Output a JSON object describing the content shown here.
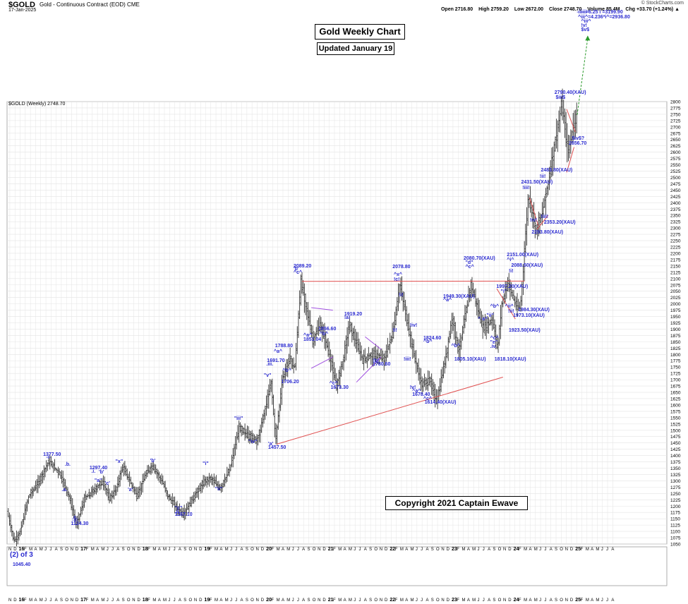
{
  "header": {
    "symbol": "$GOLD",
    "description": "Gold - Continuous Contract (EOD)  CME",
    "date": "17-Jan-2025",
    "site": "© StockCharts.com",
    "open": "Open 2716.80",
    "high": "High 2759.20",
    "low": "Low 2672.00",
    "close": "Close 2748.70",
    "volume": "Volume 85.4M",
    "change": "Chg +33.70 (+1.24%) ▲"
  },
  "title": "Gold Weekly Chart",
  "updated": "Updated January 19",
  "copyright": "Copyright 2021 Captain Ewave",
  "series_label": "$GOLD (Weekly) 2748.70",
  "wave_label": "(2) of 3",
  "wave_value": "1045.40",
  "colors": {
    "bars": "#333333",
    "labels": "#2b2bd0",
    "trendlines": "#e05050",
    "channel": "#a050e0",
    "projection": "#2a9a2a",
    "grid": "#e4e4e4"
  },
  "chart_data": {
    "type": "ohlc",
    "title": "Gold Weekly Chart",
    "y_axis_side": "right",
    "ylim": [
      1050,
      2800
    ],
    "yticks": [
      1050,
      1075,
      1100,
      1125,
      1150,
      1175,
      1200,
      1225,
      1250,
      1275,
      1300,
      1325,
      1350,
      1375,
      1400,
      1425,
      1450,
      1475,
      1500,
      1525,
      1550,
      1575,
      1600,
      1625,
      1650,
      1675,
      1700,
      1725,
      1750,
      1775,
      1800,
      1825,
      1850,
      1875,
      1900,
      1925,
      1950,
      1975,
      2000,
      2025,
      2050,
      2075,
      2100,
      2125,
      2150,
      2175,
      2200,
      2225,
      2250,
      2275,
      2300,
      2325,
      2350,
      2375,
      2400,
      2425,
      2450,
      2475,
      2500,
      2525,
      2550,
      2575,
      2600,
      2625,
      2650,
      2675,
      2700,
      2725,
      2750,
      2775,
      2800
    ],
    "xlim": [
      2015.83,
      2026.5
    ],
    "xticks": [
      "N",
      "D",
      "16",
      "F",
      "M",
      "A",
      "M",
      "J",
      "J",
      "A",
      "S",
      "O",
      "N",
      "D",
      "17",
      "F",
      "M",
      "A",
      "M",
      "J",
      "J",
      "A",
      "S",
      "O",
      "N",
      "D",
      "18",
      "F",
      "M",
      "A",
      "M",
      "J",
      "J",
      "A",
      "S",
      "O",
      "N",
      "D",
      "19",
      "F",
      "M",
      "A",
      "M",
      "J",
      "J",
      "A",
      "S",
      "O",
      "N",
      "D",
      "20",
      "F",
      "M",
      "A",
      "M",
      "J",
      "J",
      "A",
      "S",
      "O",
      "N",
      "D",
      "21",
      "F",
      "M",
      "A",
      "M",
      "J",
      "J",
      "A",
      "S",
      "O",
      "N",
      "D",
      "22",
      "F",
      "M",
      "A",
      "M",
      "J",
      "J",
      "A",
      "S",
      "O",
      "N",
      "D",
      "23",
      "F",
      "M",
      "A",
      "M",
      "J",
      "J",
      "A",
      "S",
      "O",
      "N",
      "D",
      "24",
      "F",
      "M",
      "A",
      "M",
      "J",
      "J",
      "A",
      "S",
      "O",
      "N",
      "D",
      "25",
      "F",
      "M",
      "A",
      "M",
      "J",
      "J",
      "A"
    ],
    "price_path": [
      [
        2015.85,
        1180
      ],
      [
        2015.96,
        1062
      ],
      [
        2016.05,
        1090
      ],
      [
        2016.2,
        1240
      ],
      [
        2016.35,
        1290
      ],
      [
        2016.52,
        1377.5
      ],
      [
        2016.7,
        1330
      ],
      [
        2016.85,
        1240
      ],
      [
        2016.97,
        1124.3
      ],
      [
        2017.1,
        1230
      ],
      [
        2017.2,
        1250
      ],
      [
        2017.4,
        1297.4
      ],
      [
        2017.5,
        1230
      ],
      [
        2017.6,
        1260
      ],
      [
        2017.72,
        1357
      ],
      [
        2017.95,
        1240
      ],
      [
        2018.1,
        1330
      ],
      [
        2018.2,
        1360
      ],
      [
        2018.35,
        1300
      ],
      [
        2018.45,
        1240
      ],
      [
        2018.6,
        1190
      ],
      [
        2018.7,
        1167.1
      ],
      [
        2018.85,
        1230
      ],
      [
        2019.05,
        1300
      ],
      [
        2019.15,
        1310
      ],
      [
        2019.3,
        1270
      ],
      [
        2019.45,
        1345
      ],
      [
        2019.6,
        1510
      ],
      [
        2019.75,
        1480
      ],
      [
        2019.9,
        1460
      ],
      [
        2020.0,
        1560
      ],
      [
        2020.12,
        1691.7
      ],
      [
        2020.19,
        1457.5
      ],
      [
        2020.3,
        1700
      ],
      [
        2020.42,
        1788.8
      ],
      [
        2020.5,
        1740
      ],
      [
        2020.6,
        2089.2
      ],
      [
        2020.8,
        1851.04
      ],
      [
        2020.9,
        1920
      ],
      [
        2021.0,
        1856.6
      ],
      [
        2021.18,
        1673.3
      ],
      [
        2021.3,
        1800
      ],
      [
        2021.38,
        1919.2
      ],
      [
        2021.6,
        1780.6
      ],
      [
        2021.8,
        1800
      ],
      [
        2021.95,
        1780
      ],
      [
        2022.1,
        1900
      ],
      [
        2022.2,
        2078.8
      ],
      [
        2022.4,
        1830
      ],
      [
        2022.55,
        1678.4
      ],
      [
        2022.68,
        1700
      ],
      [
        2022.8,
        1614.4
      ],
      [
        2022.95,
        1800
      ],
      [
        2023.05,
        1950
      ],
      [
        2023.15,
        1805.1
      ],
      [
        2023.35,
        2080.7
      ],
      [
        2023.55,
        1900
      ],
      [
        2023.7,
        1940
      ],
      [
        2023.78,
        1818.1
      ],
      [
        2023.85,
        2000
      ],
      [
        2023.95,
        2088.5
      ],
      [
        2024.08,
        1990
      ],
      [
        2024.15,
        1984.3
      ],
      [
        2024.28,
        2431.5
      ],
      [
        2024.4,
        2293.8
      ],
      [
        2024.5,
        2353.2
      ],
      [
        2024.6,
        2483.8
      ],
      [
        2024.82,
        2790.4
      ],
      [
        2024.92,
        2600
      ],
      [
        2025.05,
        2748.7
      ]
    ],
    "annotations": [
      {
        "text": "1377.50",
        "x": 2016.55,
        "y": 1400
      },
      {
        "text": "-i-",
        "x": 2016.6,
        "y": 1387
      },
      {
        "text": ".b.",
        "x": 2016.9,
        "y": 1360
      },
      {
        "text": ".a.",
        "x": 2016.85,
        "y": 1260
      },
      {
        "text": ".c.",
        "x": 2017.02,
        "y": 1150
      },
      {
        "text": "-ii-",
        "x": 2017.02,
        "y": 1138
      },
      {
        "text": "1124.30",
        "x": 2017.0,
        "y": 1125
      },
      {
        "text": "1297.40",
        "x": 2017.3,
        "y": 1345
      },
      {
        "text": ".i.",
        "x": 2017.33,
        "y": 1332
      },
      {
        "text": "'b'",
        "x": 2017.45,
        "y": 1330
      },
      {
        "text": "\"a\"",
        "x": 2017.38,
        "y": 1296
      },
      {
        "text": "'c'",
        "x": 2017.55,
        "y": 1285
      },
      {
        "text": "\"x\"",
        "x": 2017.72,
        "y": 1372
      },
      {
        "text": "'a'",
        "x": 2017.92,
        "y": 1260
      },
      {
        "text": "'b'",
        "x": 2018.28,
        "y": 1375
      },
      {
        "text": "\"c\"",
        "x": 2018.68,
        "y": 1187
      },
      {
        "text": ".ii.",
        "x": 2018.68,
        "y": 1174
      },
      {
        "text": "1167.10",
        "x": 2018.68,
        "y": 1161
      },
      {
        "text": "\"i\"",
        "x": 2019.13,
        "y": 1362
      },
      {
        "text": "\"ii\"",
        "x": 2019.33,
        "y": 1262
      },
      {
        "text": "\"iii\"",
        "x": 2019.64,
        "y": 1540
      },
      {
        "text": "\"iv\"",
        "x": 2019.87,
        "y": 1450
      },
      {
        "text": "\"v\"",
        "x": 2020.12,
        "y": 1712
      },
      {
        "text": ".iii.",
        "x": 2020.16,
        "y": 1757
      },
      {
        "text": "1691.70",
        "x": 2020.17,
        "y": 1770
      },
      {
        "text": "^a^",
        "x": 2020.28,
        "y": 1807
      },
      {
        "text": "1788.80",
        "x": 2020.3,
        "y": 1830
      },
      {
        "text": "^b^",
        "x": 2020.42,
        "y": 1730
      },
      {
        "text": "1706.20",
        "x": 2020.4,
        "y": 1687
      },
      {
        "text": "'a'",
        "x": 2020.19,
        "y": 1440
      },
      {
        "text": "1457.50",
        "x": 2020.19,
        "y": 1427
      },
      {
        "text": "2089.20",
        "x": 2020.6,
        "y": 2145
      },
      {
        "text": "'b'",
        "x": 2020.6,
        "y": 2132
      },
      {
        "text": "^c^",
        "x": 2020.6,
        "y": 2118
      },
      {
        "text": "^a^",
        "x": 2020.76,
        "y": 1870
      },
      {
        "text": "1851.04",
        "x": 2020.76,
        "y": 1855
      },
      {
        "text": "^b^",
        "x": 2021.02,
        "y": 1875
      },
      {
        "text": "1856.60",
        "x": 2021.0,
        "y": 1895
      },
      {
        "text": "^c^",
        "x": 2021.18,
        "y": 1680
      },
      {
        "text": "1673.30",
        "x": 2021.2,
        "y": 1665
      },
      {
        "text": "1919.20",
        "x": 2021.42,
        "y": 1955
      },
      {
        "text": "!a!",
        "x": 2021.42,
        "y": 1940
      },
      {
        "text": "!b!",
        "x": 2021.88,
        "y": 1770
      },
      {
        "text": "1780.60",
        "x": 2021.88,
        "y": 1757
      },
      {
        "text": "2078.80",
        "x": 2022.2,
        "y": 2140
      },
      {
        "text": "^x^",
        "x": 2022.22,
        "y": 2110
      },
      {
        "text": "!c!",
        "x": 2022.22,
        "y": 2090
      },
      {
        "text": "!i!",
        "x": 2022.3,
        "y": 2030
      },
      {
        "text": "!i!",
        "x": 2022.2,
        "y": 1890
      },
      {
        "text": "!iii!",
        "x": 2022.38,
        "y": 1775
      },
      {
        "text": "!v!",
        "x": 2022.48,
        "y": 1665
      },
      {
        "text": "^a^",
        "x": 2022.52,
        "y": 1650
      },
      {
        "text": "1678.40",
        "x": 2022.52,
        "y": 1635
      },
      {
        "text": "^c^",
        "x": 2022.7,
        "y": 1620
      },
      {
        "text": "1614.40(XAU)",
        "x": 2022.72,
        "y": 1605
      },
      {
        "text": "!iv!",
        "x": 2022.48,
        "y": 1910
      },
      {
        "text": "1824.60",
        "x": 2022.7,
        "y": 1860
      },
      {
        "text": "^b^",
        "x": 2022.7,
        "y": 1845
      },
      {
        "text": "1949.30(XAU)",
        "x": 2023.02,
        "y": 2025
      },
      {
        "text": "^a^",
        "x": 2023.02,
        "y": 2010
      },
      {
        "text": "^b^",
        "x": 2023.15,
        "y": 1830
      },
      {
        "text": "1805.10(XAU)",
        "x": 2023.2,
        "y": 1775
      },
      {
        "text": "2080.70(XAU)",
        "x": 2023.35,
        "y": 2175
      },
      {
        "text": "\"d\"",
        "x": 2023.38,
        "y": 2158
      },
      {
        "text": "^c^",
        "x": 2023.38,
        "y": 2140
      },
      {
        "text": "^ a^",
        "x": 2023.58,
        "y": 1935
      },
      {
        "text": "^b^",
        "x": 2023.78,
        "y": 1985
      },
      {
        "text": "\"ii\"",
        "x": 2023.72,
        "y": 1950
      },
      {
        "text": "^c^",
        "x": 2023.78,
        "y": 1860
      },
      {
        "text": "\"e\"",
        "x": 2023.78,
        "y": 1843
      },
      {
        "text": ".iv.",
        "x": 2023.78,
        "y": 1826
      },
      {
        "text": "1818.10(XAU)",
        "x": 2023.85,
        "y": 1775
      },
      {
        "text": "1997.20(XAU)",
        "x": 2023.88,
        "y": 2063
      },
      {
        "text": "\"i\"",
        "x": 2023.95,
        "y": 2045
      },
      {
        "text": "2151.00(XAU)",
        "x": 2024.05,
        "y": 2190
      },
      {
        "text": "^i^",
        "x": 2024.05,
        "y": 2170
      },
      {
        "text": "2088.50(XAU)",
        "x": 2024.12,
        "y": 2148
      },
      {
        "text": "!i!",
        "x": 2024.08,
        "y": 2125
      },
      {
        "text": "^ii^",
        "x": 2024.02,
        "y": 1985
      },
      {
        "text": "!ii!",
        "x": 2024.07,
        "y": 1965
      },
      {
        "text": "1984.30(XAU)",
        "x": 2024.23,
        "y": 1970
      },
      {
        "text": "1973.10(XAU)",
        "x": 2024.15,
        "y": 1948
      },
      {
        "text": "1923.50(XAU)",
        "x": 2024.08,
        "y": 1890
      },
      {
        "text": "2431.50(XAU)",
        "x": 2024.28,
        "y": 2475
      },
      {
        "text": "!iii!",
        "x": 2024.3,
        "y": 2455
      },
      {
        "text": "!iv!",
        "x": 2024.42,
        "y": 2325
      },
      {
        "text": "2293.80(XAU)",
        "x": 2024.45,
        "y": 2278
      },
      {
        "text": "!iii!",
        "x": 2024.6,
        "y": 2340
      },
      {
        "text": "2353.20(XAU)",
        "x": 2024.65,
        "y": 2318
      },
      {
        "text": "2483.80(XAU)",
        "x": 2024.6,
        "y": 2525
      },
      {
        "text": "!ii!",
        "x": 2024.58,
        "y": 2498
      },
      {
        "text": "2790.40(XAU)",
        "x": 2024.82,
        "y": 2830
      },
      {
        "text": "$iii$",
        "x": 2024.84,
        "y": 2812
      },
      {
        "text": "$iv$?",
        "x": 2025.1,
        "y": 2650
      },
      {
        "text": "2656.70",
        "x": 2025.05,
        "y": 2630
      },
      {
        "text": "-iii- =6.25 i =3199.90",
        "x": 2025.18,
        "y": 3195
      },
      {
        "text": "-iii-",
        "x": 2025.25,
        "y": 3165
      },
      {
        "text": "^iii^=4.236*i^=2936.80",
        "x": 2025.2,
        "y": 3130
      },
      {
        "text": "^iii^",
        "x": 2025.25,
        "y": 3112
      },
      {
        "text": "!v!",
        "x": 2025.25,
        "y": 3095
      },
      {
        "text": "$v$",
        "x": 2025.25,
        "y": 3078
      }
    ],
    "trendlines": [
      {
        "kind": "red",
        "x1": 2020.19,
        "y1": 1445,
        "x2": 2023.85,
        "y2": 1710
      },
      {
        "kind": "red",
        "x1": 2020.6,
        "y1": 2089,
        "x2": 2024.2,
        "y2": 2090
      },
      {
        "kind": "red",
        "x1": 2023.75,
        "y1": 2060,
        "x2": 2024.05,
        "y2": 1940
      },
      {
        "kind": "red",
        "x1": 2024.28,
        "y1": 2420,
        "x2": 2024.42,
        "y2": 2310
      },
      {
        "kind": "red",
        "x1": 2024.4,
        "y1": 2295,
        "x2": 2024.58,
        "y2": 2350
      },
      {
        "kind": "red",
        "x1": 2024.88,
        "y1": 2770,
        "x2": 2025.02,
        "y2": 2680
      },
      {
        "kind": "red",
        "x1": 2024.88,
        "y1": 2520,
        "x2": 2025.0,
        "y2": 2620
      },
      {
        "kind": "purple",
        "x1": 2020.75,
        "y1": 1985,
        "x2": 2021.1,
        "y2": 1975
      },
      {
        "kind": "purple",
        "x1": 2020.75,
        "y1": 1745,
        "x2": 2021.1,
        "y2": 1790
      },
      {
        "kind": "purple",
        "x1": 2021.62,
        "y1": 1870,
        "x2": 2021.88,
        "y2": 1820
      },
      {
        "kind": "purple",
        "x1": 2021.48,
        "y1": 1690,
        "x2": 2021.88,
        "y2": 1790
      }
    ],
    "projection": {
      "x1": 2025.05,
      "y1": 2748,
      "x2": 2025.22,
      "y2": 3050
    }
  }
}
